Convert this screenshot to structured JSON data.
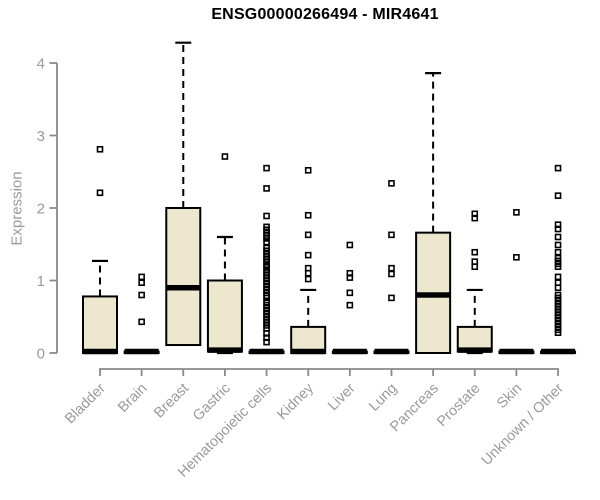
{
  "colors": {
    "box_fill": "#EDE8CD",
    "box_border": "#000000",
    "median": "#000000",
    "whisker": "#000000",
    "outlier": "#000000",
    "axis": "#8a8a8a",
    "tick_label": "#9a9a9a",
    "title": "#000000"
  },
  "chart_data": {
    "type": "boxplot",
    "title": "ENSG00000266494 - MIR4641",
    "ylabel": "Expression",
    "xlabel": "",
    "ylim": [
      0,
      4.3
    ],
    "yticks": [
      0,
      1,
      2,
      3,
      4
    ],
    "grid": false,
    "legend": "none",
    "categories": [
      "Bladder",
      "Brain",
      "Breast",
      "Gastric",
      "Hematopoietic cells",
      "Kidney",
      "Liver",
      "Lung",
      "Pancreas",
      "Prostate",
      "Skin",
      "Unknown / Other"
    ],
    "series": [
      {
        "name": "Bladder",
        "whisker_low": 0,
        "q1": 0,
        "median": 0.02,
        "q3": 0.78,
        "whisker_high": 1.27,
        "outliers": [
          2.81,
          2.21
        ]
      },
      {
        "name": "Brain",
        "whisker_low": 0,
        "q1": 0,
        "median": 0.02,
        "q3": 0.02,
        "whisker_high": 0.02,
        "outliers": [
          1.05,
          0.97,
          0.8,
          0.43
        ]
      },
      {
        "name": "Breast",
        "whisker_low": 0.11,
        "q1": 0.11,
        "median": 0.9,
        "q3": 2.0,
        "whisker_high": 4.28,
        "outliers": []
      },
      {
        "name": "Gastric",
        "whisker_low": 0,
        "q1": 0.02,
        "median": 0.04,
        "q3": 1.0,
        "whisker_high": 1.6,
        "outliers": [
          2.71
        ]
      },
      {
        "name": "Hematopoietic cells",
        "whisker_low": 0,
        "q1": 0,
        "median": 0.02,
        "q3": 0.02,
        "whisker_high": 0.02,
        "outliers": [
          2.55,
          2.27,
          1.89,
          1.74,
          1.7,
          1.66,
          1.62,
          1.58,
          1.53,
          1.45,
          1.41,
          1.37,
          1.33,
          1.29,
          1.25,
          1.21,
          1.19,
          1.15,
          1.11,
          1.07,
          1.03,
          0.99,
          0.95,
          0.91,
          0.87,
          0.83,
          0.79,
          0.76,
          0.7,
          0.66,
          0.62,
          0.58,
          0.54,
          0.5,
          0.46,
          0.42,
          0.38,
          0.34,
          0.27,
          0.21,
          0.15
        ]
      },
      {
        "name": "Kidney",
        "whisker_low": 0,
        "q1": 0,
        "median": 0.02,
        "q3": 0.36,
        "whisker_high": 0.87,
        "outliers": [
          2.52,
          1.9,
          1.63,
          1.35,
          1.17,
          1.1,
          1.02
        ]
      },
      {
        "name": "Liver",
        "whisker_low": 0,
        "q1": 0,
        "median": 0.02,
        "q3": 0.02,
        "whisker_high": 0.02,
        "outliers": [
          1.49,
          1.1,
          1.04,
          0.83,
          0.66
        ]
      },
      {
        "name": "Lung",
        "whisker_low": 0,
        "q1": 0,
        "median": 0.02,
        "q3": 0.02,
        "whisker_high": 0.02,
        "outliers": [
          2.34,
          1.63,
          1.17,
          1.09,
          0.76
        ]
      },
      {
        "name": "Pancreas",
        "whisker_low": 0,
        "q1": 0,
        "median": 0.8,
        "q3": 1.66,
        "whisker_high": 3.86,
        "outliers": []
      },
      {
        "name": "Prostate",
        "whisker_low": 0,
        "q1": 0.02,
        "median": 0.04,
        "q3": 0.36,
        "whisker_high": 0.87,
        "outliers": [
          1.92,
          1.86,
          1.39,
          1.26,
          1.19
        ]
      },
      {
        "name": "Skin",
        "whisker_low": 0,
        "q1": 0,
        "median": 0.02,
        "q3": 0.02,
        "whisker_high": 0.02,
        "outliers": [
          1.94,
          1.32
        ]
      },
      {
        "name": "Unknown / Other",
        "whisker_low": 0,
        "q1": 0,
        "median": 0.02,
        "q3": 0.02,
        "whisker_high": 0.02,
        "outliers": [
          2.55,
          2.17,
          1.77,
          1.71,
          1.6,
          1.49,
          1.39,
          1.31,
          1.27,
          1.23,
          1.19,
          1.05,
          0.97,
          0.9,
          0.8,
          0.76,
          0.72,
          0.68,
          0.64,
          0.6,
          0.56,
          0.52,
          0.48,
          0.44,
          0.4,
          0.36,
          0.32,
          0.28
        ]
      }
    ]
  }
}
